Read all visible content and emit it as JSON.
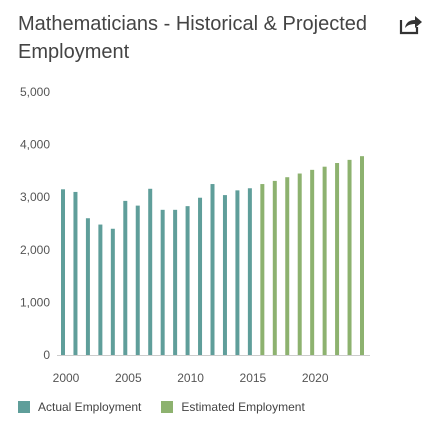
{
  "header": {
    "title": "Mathematicians - Historical & Projected Employment",
    "share_icon": "share-arrow-icon"
  },
  "chart_data": {
    "type": "bar",
    "title": "Mathematicians - Historical & Projected Employment",
    "xlabel": "",
    "ylabel": "",
    "ylim": [
      0,
      5000
    ],
    "y_ticks": [
      "0",
      "1,000",
      "2,000",
      "3,000",
      "4,000",
      "5,000"
    ],
    "x_ticks": [
      "2000",
      "2005",
      "2010",
      "2015",
      "2020"
    ],
    "grid": false,
    "legend_position": "bottom",
    "categories": [
      2000,
      2001,
      2002,
      2003,
      2004,
      2005,
      2006,
      2007,
      2008,
      2009,
      2010,
      2011,
      2012,
      2013,
      2014,
      2015,
      2016,
      2017,
      2018,
      2019,
      2020,
      2021,
      2022,
      2023,
      2024
    ],
    "series": [
      {
        "name": "Actual Employment",
        "color": "#5f9e9a",
        "values": [
          3150,
          3100,
          2600,
          2480,
          2400,
          2930,
          2840,
          3160,
          2760,
          2760,
          2830,
          2990,
          3250,
          3040,
          3130,
          3170,
          null,
          null,
          null,
          null,
          null,
          null,
          null,
          null,
          null
        ]
      },
      {
        "name": "Estimated Employment",
        "color": "#8db26f",
        "values": [
          null,
          null,
          null,
          null,
          null,
          null,
          null,
          null,
          null,
          null,
          null,
          null,
          null,
          null,
          null,
          null,
          3250,
          3310,
          3380,
          3450,
          3520,
          3580,
          3650,
          3710,
          3780
        ]
      }
    ]
  }
}
